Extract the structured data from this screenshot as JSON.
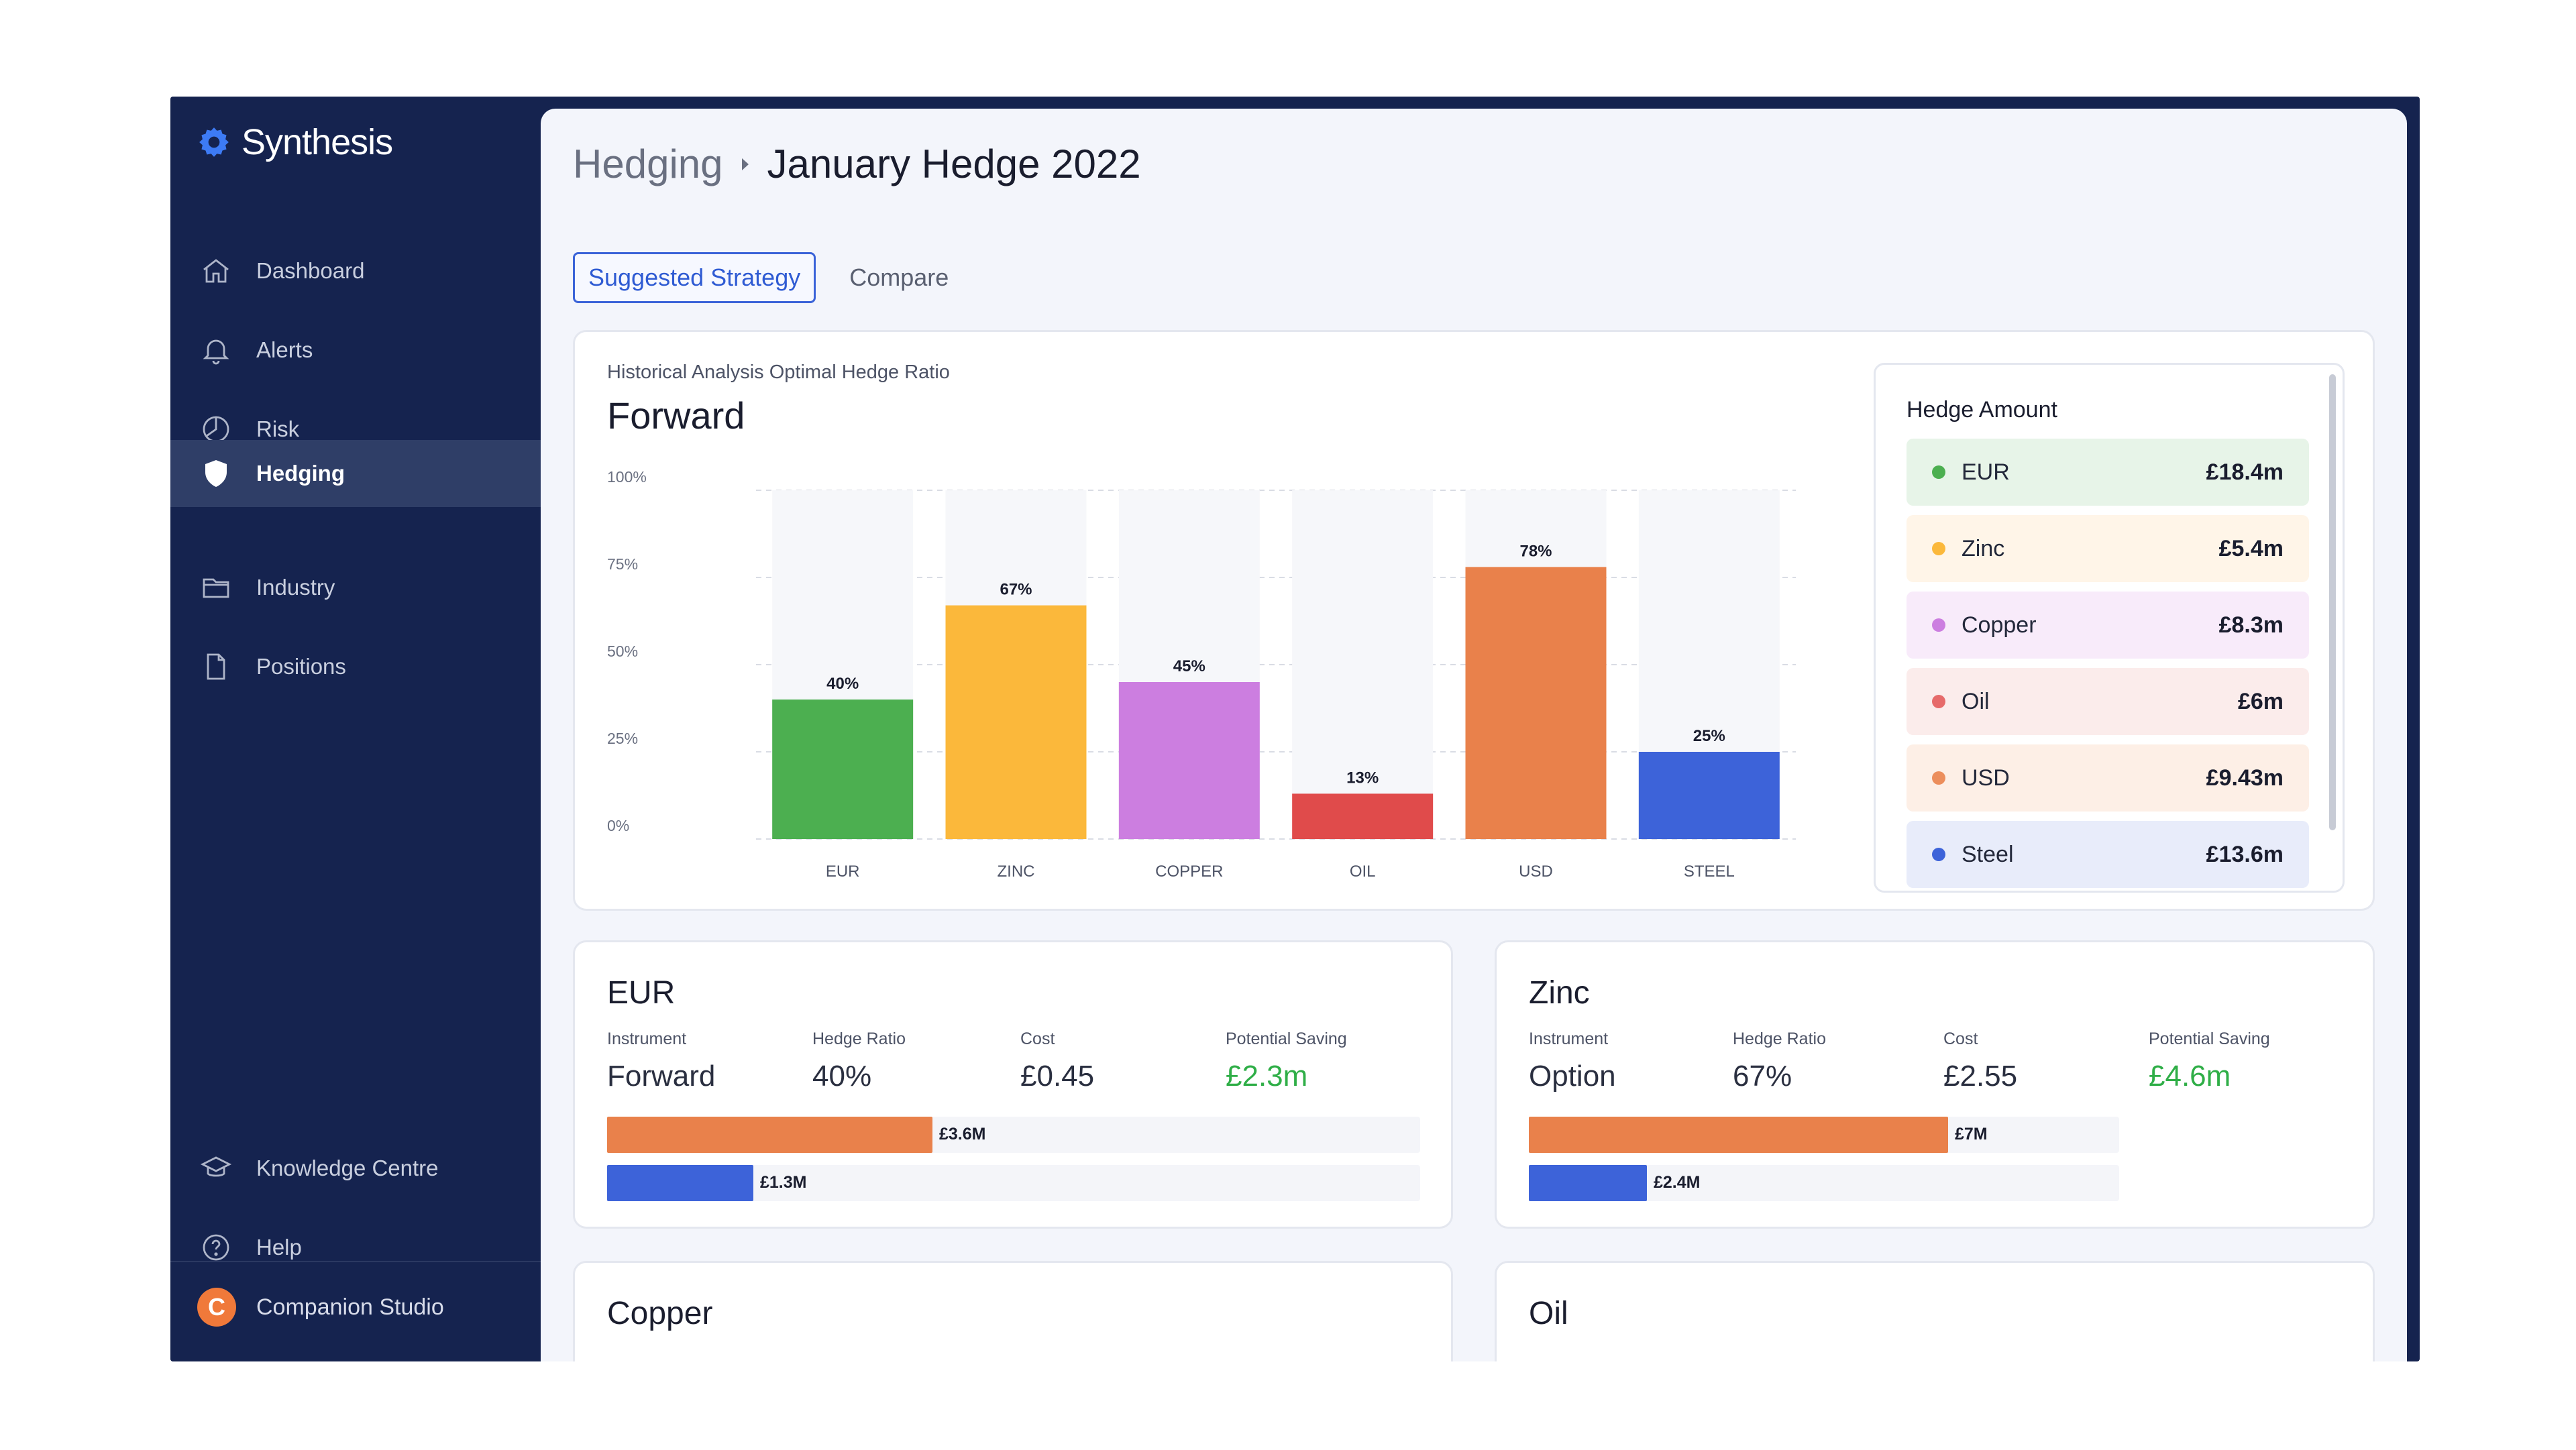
{
  "app": {
    "name": "Synthesis"
  },
  "sidebar": {
    "items": [
      {
        "label": "Dashboard",
        "icon": "home-icon"
      },
      {
        "label": "Alerts",
        "icon": "bell-icon"
      },
      {
        "label": "Risk",
        "icon": "pie-icon"
      },
      {
        "label": "Hedging",
        "icon": "shield-icon",
        "active": true
      },
      {
        "label": "Industry",
        "icon": "folder-icon"
      },
      {
        "label": "Positions",
        "icon": "document-icon"
      }
    ],
    "bottom_items": [
      {
        "label": "Knowledge Centre",
        "icon": "graduation-cap-icon"
      },
      {
        "label": "Help",
        "icon": "help-circle-icon"
      }
    ],
    "companion": {
      "badge": "C",
      "label": "Companion Studio"
    }
  },
  "breadcrumb": {
    "parent": "Hedging",
    "current": "January Hedge 2022"
  },
  "tabs": [
    {
      "label": "Suggested Strategy",
      "active": true
    },
    {
      "label": "Compare",
      "active": false
    }
  ],
  "chart_card": {
    "subtitle": "Historical Analysis Optimal Hedge Ratio",
    "title": "Forward"
  },
  "chart_data": {
    "type": "bar",
    "categories": [
      "EUR",
      "ZINC",
      "COPPER",
      "OIL",
      "USD",
      "STEEL"
    ],
    "values": [
      40,
      67,
      45,
      13,
      78,
      25
    ],
    "value_labels": [
      "40%",
      "67%",
      "45%",
      "13%",
      "78%",
      "25%"
    ],
    "colors": [
      "#4caf50",
      "#fbb83b",
      "#cc7ee0",
      "#e04b4b",
      "#e9814b",
      "#3d63d9"
    ],
    "ylim": [
      0,
      100
    ],
    "yticks": [
      0,
      25,
      50,
      75,
      100
    ],
    "ytick_labels": [
      "0%",
      "25%",
      "50%",
      "75%",
      "100%"
    ],
    "grid": true
  },
  "hedge_amount": {
    "title": "Hedge Amount",
    "rows": [
      {
        "label": "EUR",
        "amount": "£18.4m",
        "dot": "#4caf50",
        "bg": "#e7f4e8"
      },
      {
        "label": "Zinc",
        "amount": "£5.4m",
        "dot": "#fbb83b",
        "bg": "#fff5e8"
      },
      {
        "label": "Copper",
        "amount": "£8.3m",
        "dot": "#cc7ee0",
        "bg": "#f8ebfa"
      },
      {
        "label": "Oil",
        "amount": "£6m",
        "dot": "#e66a6a",
        "bg": "#fbeceb"
      },
      {
        "label": "USD",
        "amount": "£9.43m",
        "dot": "#ec8e5c",
        "bg": "#fdefe6"
      },
      {
        "label": "Steel",
        "amount": "£13.6m",
        "dot": "#3d63d9",
        "bg": "#e8ecfa"
      }
    ]
  },
  "details": [
    {
      "title": "EUR",
      "headers": {
        "instrument": "Instrument",
        "ratio": "Hedge Ratio",
        "cost": "Cost",
        "saving": "Potential Saving"
      },
      "instrument": "Forward",
      "ratio": "40%",
      "cost": "£0.45",
      "saving": "£2.3m",
      "bars": [
        {
          "label": "£3.6M",
          "fraction": 0.4,
          "color": "#e9814b"
        },
        {
          "label": "£1.3M",
          "fraction": 0.18,
          "color": "#3d63d9"
        }
      ]
    },
    {
      "title": "Zinc",
      "headers": {
        "instrument": "Instrument",
        "ratio": "Hedge Ratio",
        "cost": "Cost",
        "saving": "Potential Saving"
      },
      "instrument": "Option",
      "ratio": "67%",
      "cost": "£2.55",
      "saving": "£4.6m",
      "bars": [
        {
          "label": "£7M",
          "fraction": 0.71,
          "color": "#e9814b"
        },
        {
          "label": "£2.4M",
          "fraction": 0.2,
          "color": "#3d63d9"
        }
      ]
    }
  ],
  "more_cards": [
    {
      "title": "Copper"
    },
    {
      "title": "Oil"
    }
  ]
}
